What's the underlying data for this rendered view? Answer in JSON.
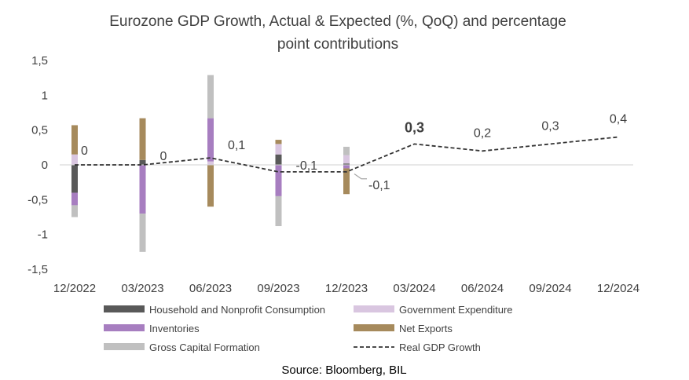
{
  "chart_data": {
    "type": "bar",
    "title": "Eurozone GDP Growth, Actual & Expected (%, QoQ) and percentage point contributions",
    "title_lines": [
      "Eurozone GDP Growth, Actual & Expected (%, QoQ) and percentage",
      "point contributions"
    ],
    "categories": [
      "12/2022",
      "03/2023",
      "06/2023",
      "09/2023",
      "12/2023",
      "03/2024",
      "06/2024",
      "09/2024",
      "12/2024"
    ],
    "y_ticks": [
      "1,5",
      "1",
      "0,5",
      "0",
      "-0,5",
      "-1",
      "-1,5"
    ],
    "ylim": [
      -1.5,
      1.5
    ],
    "grid": false,
    "legend_position": "bottom",
    "series": [
      {
        "name": "Household and Nonprofit Consumption",
        "type": "bar",
        "color": "#595959",
        "values": [
          -0.4,
          0.07,
          0.0,
          0.15,
          0.02,
          null,
          null,
          null,
          null
        ]
      },
      {
        "name": "Government Expenditure",
        "type": "bar",
        "color": "#d9c6e0",
        "values": [
          0.15,
          0.0,
          0.05,
          0.15,
          0.12,
          null,
          null,
          null,
          null
        ]
      },
      {
        "name": "Inventories",
        "type": "bar",
        "color": "#a77ec0",
        "values": [
          -0.18,
          -0.7,
          0.62,
          -0.45,
          -0.05,
          null,
          null,
          null,
          null
        ]
      },
      {
        "name": "Net Exports",
        "type": "bar",
        "color": "#a68a5c",
        "values": [
          0.42,
          0.6,
          -0.6,
          0.06,
          -0.37,
          null,
          null,
          null,
          null
        ]
      },
      {
        "name": "Gross Capital Formation",
        "type": "bar",
        "color": "#c0c0c0",
        "values": [
          -0.17,
          -0.55,
          0.62,
          -0.43,
          0.12,
          null,
          null,
          null,
          null
        ]
      },
      {
        "name": "Real GDP Growth",
        "type": "line",
        "color": "#333333",
        "dash": true,
        "values": [
          0,
          0,
          0.1,
          -0.1,
          -0.1,
          0.3,
          0.2,
          0.3,
          0.4
        ]
      }
    ],
    "data_labels": [
      "0",
      "0",
      "0,1",
      "-0,1",
      "-0,1",
      "0,3",
      "0,2",
      "0,3",
      "0,4"
    ],
    "source": "Source: Bloomberg, BIL"
  }
}
